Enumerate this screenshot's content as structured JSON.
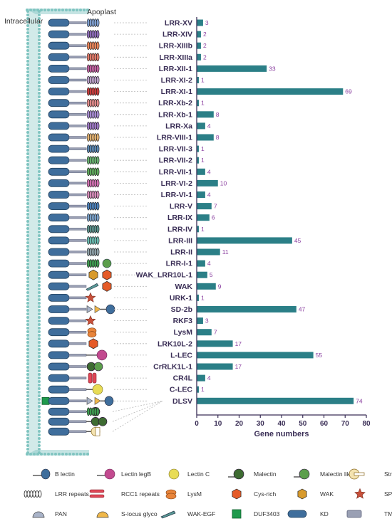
{
  "header": {
    "left": "Intracellular",
    "right": "Apoplast"
  },
  "chart_data": {
    "type": "bar",
    "orientation": "horizontal",
    "xlabel": "Gene numbers",
    "xlim": [
      0,
      80
    ],
    "xticks": [
      0,
      10,
      20,
      30,
      40,
      50,
      60,
      70,
      80
    ],
    "bar_color": "#2b7f87",
    "categories": [
      "LRR-XV",
      "LRR-XIV",
      "LRR-XIIIb",
      "LRR-XIIIa",
      "LRR-XII-1",
      "LRR-XI-2",
      "LRR-XI-1",
      "LRR-Xb-2",
      "LRR-Xb-1",
      "LRR-Xa",
      "LRR-VIII-1",
      "LRR-VII-3",
      "LRR-VII-2",
      "LRR-VII-1",
      "LRR-VI-2",
      "LRR-VI-1",
      "LRR-V",
      "LRR-IX",
      "LRR-IV",
      "LRR-III",
      "LRR-II",
      "LRR-I-1",
      "WAK_LRR10L-1",
      "WAK",
      "URK-1",
      "SD-2b",
      "RKF3",
      "LysM",
      "LRK10L-2",
      "L-LEC",
      "CrRLK1L-1",
      "CR4L",
      "C-LEC",
      "DLSV"
    ],
    "values": [
      3,
      2,
      2,
      2,
      33,
      1,
      69,
      1,
      8,
      4,
      8,
      1,
      1,
      4,
      10,
      4,
      7,
      6,
      1,
      45,
      11,
      4,
      5,
      9,
      1,
      47,
      3,
      7,
      17,
      55,
      17,
      4,
      1,
      74
    ]
  },
  "legend": [
    {
      "label": "B lectin",
      "icon": "b-lectin-icon"
    },
    {
      "label": "Lectin legB",
      "icon": "lectin-legb-icon"
    },
    {
      "label": "Lectin C",
      "icon": "lectin-c-icon"
    },
    {
      "label": "Malectin",
      "icon": "malectin-icon"
    },
    {
      "label": "Malectin like",
      "icon": "malectin-like-icon"
    },
    {
      "label": "Stress-antifung",
      "icon": "stress-antifung-icon"
    },
    {
      "label": "LRR repeats",
      "icon": "lrr-repeats-icon"
    },
    {
      "label": "RCC1 repeats",
      "icon": "rcc1-repeats-icon"
    },
    {
      "label": "LysM",
      "icon": "lysm-icon"
    },
    {
      "label": "Cys-rich",
      "icon": "cys-rich-icon"
    },
    {
      "label": "WAK",
      "icon": "wak-icon"
    },
    {
      "label": "SPARK",
      "icon": "spark-icon"
    },
    {
      "label": "PAN",
      "icon": "pan-icon"
    },
    {
      "label": "S-locus glyco",
      "icon": "s-locus-glyco-icon"
    },
    {
      "label": "WAK-EGF",
      "icon": "wak-egf-icon"
    },
    {
      "label": "DUF3403",
      "icon": "duf3403-icon"
    },
    {
      "label": "KD",
      "icon": "kd-icon"
    },
    {
      "label": "TMD",
      "icon": "tmd-icon"
    }
  ],
  "colors": {
    "kd": "#3f6e9c",
    "b_lectin": "#3f6e9c",
    "lectin_legb": "#c24a8f",
    "lectin_c": "#e8dc55",
    "malectin": "#3e6b32",
    "malectin_like": "#5c9e4c",
    "lysm": "#e8843a",
    "cys_rich": "#e55b28",
    "wak": "#d89a2c",
    "spark": "#c8503a",
    "pan": "#a9b3c8",
    "s_locus": "#f0b84a",
    "wak_egf": "#5a9a97",
    "duf3403": "#1f9a4c",
    "rcc1": "#e04757",
    "tmd": "#9aa0b4",
    "membrane": "#7fc4c0",
    "axis": "#3a2e56"
  }
}
